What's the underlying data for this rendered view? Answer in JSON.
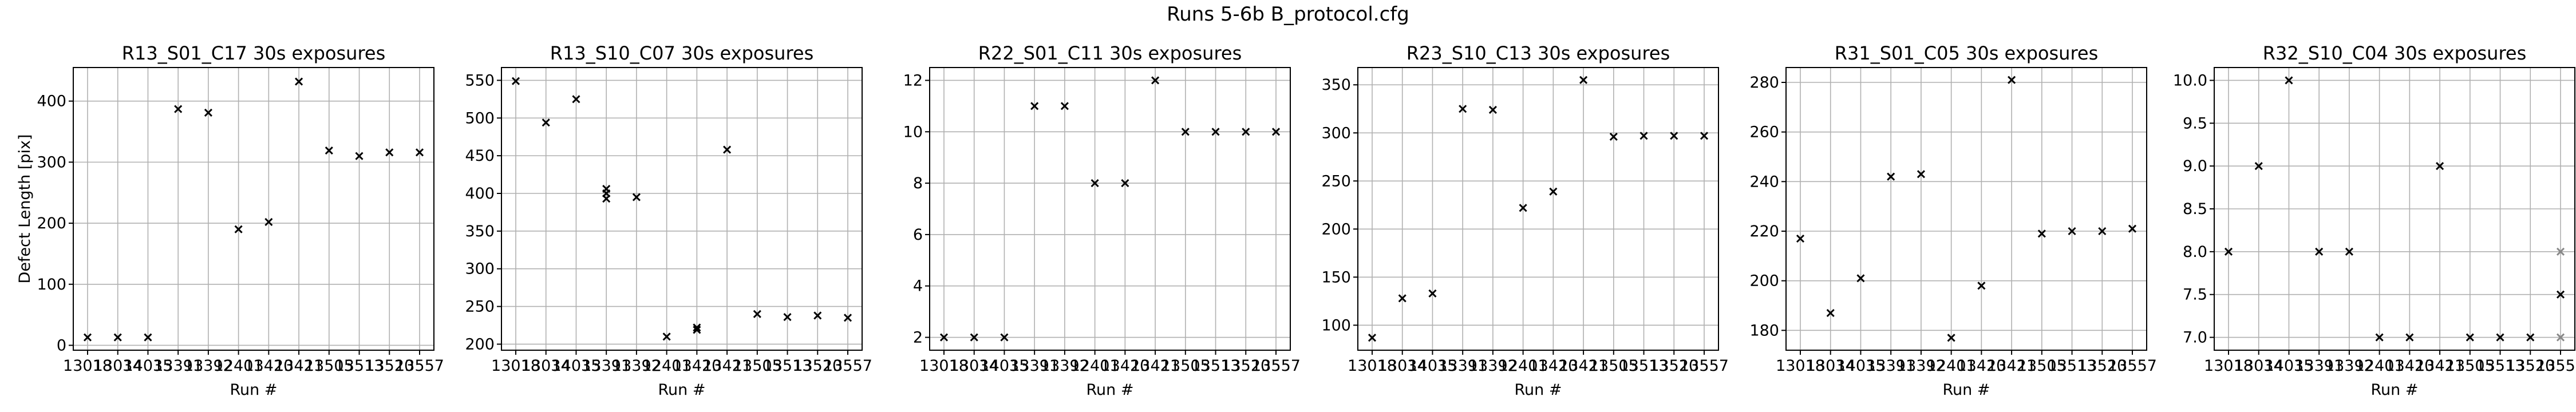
{
  "figure": {
    "suptitle": "Runs 5-6b B_protocol.cfg",
    "xlabel": "Run #",
    "ylabel": "Defect Length [pix]",
    "marker_color": "#000000",
    "marker_color_light": "#888888"
  },
  "chart_data": [
    {
      "type": "scatter",
      "title": "R13_S01_C17 30s exposures",
      "xlabel": "Run #",
      "ylabel": "Defect Length [pix]",
      "categories": [
        "13018",
        "13034",
        "14035",
        "13391",
        "13392",
        "12401",
        "13420",
        "13421",
        "13505",
        "13513",
        "13520",
        "13557"
      ],
      "values": [
        13,
        13,
        13,
        387,
        381,
        190,
        202,
        432,
        319,
        310,
        316,
        316
      ],
      "ylim": [
        -8,
        455
      ],
      "yticks": [
        0,
        100,
        200,
        300,
        400
      ],
      "grid": true
    },
    {
      "type": "scatter",
      "title": "R13_S10_C07 30s exposures",
      "xlabel": "Run #",
      "ylabel": "",
      "categories": [
        "13018",
        "13034",
        "14035",
        "13391",
        "13392",
        "12401",
        "13420",
        "13421",
        "13505",
        "13513",
        "13520",
        "13557"
      ],
      "values": [
        549,
        494,
        525,
        400,
        395,
        210,
        222,
        458,
        240,
        236,
        238,
        235
      ],
      "extra_points": [
        {
          "index": 3,
          "value": 393
        },
        {
          "index": 3,
          "value": 406
        },
        {
          "index": 6,
          "value": 219
        }
      ],
      "ylim": [
        192,
        567
      ],
      "yticks": [
        200,
        250,
        300,
        350,
        400,
        450,
        500,
        550
      ],
      "grid": true
    },
    {
      "type": "scatter",
      "title": "R22_S01_C11 30s exposures",
      "xlabel": "Run #",
      "ylabel": "",
      "categories": [
        "13018",
        "13034",
        "14035",
        "13391",
        "13392",
        "12401",
        "13420",
        "13421",
        "13505",
        "13513",
        "13520",
        "13557"
      ],
      "values": [
        2,
        2,
        2,
        11,
        11,
        8,
        8,
        12,
        10,
        10,
        10,
        10
      ],
      "ylim": [
        1.5,
        12.5
      ],
      "yticks": [
        2,
        4,
        6,
        8,
        10,
        12
      ],
      "grid": true
    },
    {
      "type": "scatter",
      "title": "R23_S10_C13 30s exposures",
      "xlabel": "Run #",
      "ylabel": "",
      "categories": [
        "13018",
        "13034",
        "14035",
        "13391",
        "13392",
        "12401",
        "13420",
        "13421",
        "13505",
        "13513",
        "13520",
        "13557"
      ],
      "values": [
        87,
        128,
        133,
        325,
        324,
        222,
        239,
        355,
        296,
        297,
        297,
        297
      ],
      "ylim": [
        74,
        368
      ],
      "yticks": [
        100,
        150,
        200,
        250,
        300,
        350
      ],
      "grid": true
    },
    {
      "type": "scatter",
      "title": "R31_S01_C05 30s exposures",
      "xlabel": "Run #",
      "ylabel": "",
      "categories": [
        "13018",
        "13034",
        "14035",
        "13391",
        "13392",
        "12401",
        "13420",
        "13421",
        "13505",
        "13513",
        "13520",
        "13557"
      ],
      "values": [
        217,
        187,
        201,
        242,
        243,
        177,
        198,
        281,
        219,
        220,
        220,
        221
      ],
      "ylim": [
        172,
        286
      ],
      "yticks": [
        180,
        200,
        220,
        240,
        260,
        280
      ],
      "grid": true
    },
    {
      "type": "scatter",
      "title": "R32_S10_C04 30s exposures",
      "xlabel": "Run #",
      "ylabel": "",
      "categories": [
        "13018",
        "13034",
        "14035",
        "13391",
        "13392",
        "12401",
        "13420",
        "13421",
        "13505",
        "13513",
        "13520",
        "13557"
      ],
      "values": [
        8,
        9,
        10,
        8,
        8,
        7,
        7,
        9,
        7,
        7,
        7,
        7.5
      ],
      "extra_points": [
        {
          "index": 11,
          "value": 8,
          "light": true
        },
        {
          "index": 11,
          "value": 7,
          "light": true
        }
      ],
      "ylim": [
        6.85,
        10.15
      ],
      "yticks": [
        7.0,
        7.5,
        8.0,
        8.5,
        9.0,
        9.5,
        10.0
      ],
      "ytick_decimals": 1,
      "grid": true
    }
  ]
}
